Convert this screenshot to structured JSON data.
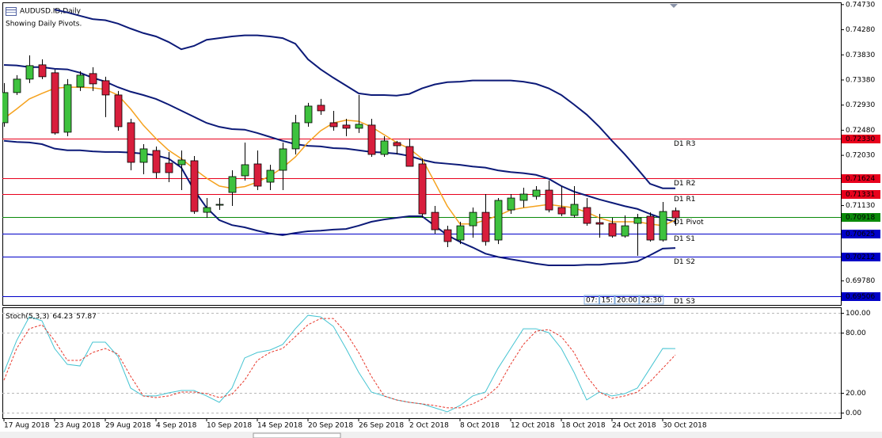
{
  "chart_data": {
    "type": "candlestick",
    "title": "AUDUSD.ID,Daily",
    "subtitle": "Showing Daily Pivots.",
    "categories": [
      "17 Aug 2018",
      null,
      null,
      null,
      "23 Aug 2018",
      null,
      null,
      null,
      "29 Aug 2018",
      null,
      null,
      null,
      "4 Sep 2018",
      null,
      null,
      null,
      "10 Sep 2018",
      null,
      null,
      null,
      "14 Sep 2018",
      null,
      null,
      null,
      "20 Sep 2018",
      null,
      null,
      null,
      "26 Sep 2018",
      null,
      null,
      null,
      "2 Oct 2018",
      null,
      null,
      null,
      "8 Oct 2018",
      null,
      null,
      null,
      "12 Oct 2018",
      null,
      null,
      null,
      "18 Oct 2018",
      null,
      null,
      null,
      "24 Oct 2018",
      null,
      null,
      null,
      "30 Oct 2018",
      null
    ],
    "open": [
      0.72614,
      0.73154,
      0.73395,
      0.73651,
      0.73509,
      0.72444,
      0.73253,
      0.73495,
      0.73367,
      0.73111,
      0.72614,
      0.71904,
      0.72117,
      0.7189,
      0.71862,
      0.71933,
      0.71009,
      0.71137,
      0.71365,
      0.71663,
      0.71876,
      0.71549,
      0.71762,
      0.72146,
      0.72614,
      0.72927,
      0.72614,
      0.72572,
      0.72515,
      0.72572,
      0.72046,
      0.72259,
      0.72188,
      0.71876,
      0.71009,
      0.70697,
      0.70513,
      0.70768,
      0.71009,
      0.70513,
      0.71052,
      0.71223,
      0.71294,
      0.71407,
      0.71095,
      0.70953,
      0.71095,
      0.70825,
      0.70811,
      0.70584,
      0.70811,
      0.70939,
      0.70513,
      0.71038
    ],
    "high": [
      0.73324,
      0.73466,
      0.73821,
      0.7375,
      0.73566,
      0.73395,
      0.73537,
      0.73608,
      0.73438,
      0.73182,
      0.72685,
      0.72231,
      0.72188,
      0.72089,
      0.72117,
      0.72018,
      0.71265,
      0.71265,
      0.71762,
      0.72259,
      0.72117,
      0.71862,
      0.72259,
      0.72756,
      0.72969,
      0.7304,
      0.72827,
      0.72685,
      0.73111,
      0.72685,
      0.72373,
      0.72288,
      0.7233,
      0.71975,
      0.71123,
      0.70768,
      0.70839,
      0.71095,
      0.71336,
      0.71265,
      0.71336,
      0.7145,
      0.71478,
      0.71578,
      0.71478,
      0.71478,
      0.71265,
      0.70981,
      0.7091,
      0.70953,
      0.70981,
      0.71009,
      0.71194,
      0.71095
    ],
    "low": [
      0.72543,
      0.73111,
      0.73324,
      0.73395,
      0.72401,
      0.72373,
      0.73182,
      0.73182,
      0.72714,
      0.72472,
      0.71762,
      0.71691,
      0.7162,
      0.71549,
      0.71407,
      0.70981,
      0.7091,
      0.71052,
      0.71123,
      0.71578,
      0.71407,
      0.71407,
      0.71407,
      0.72046,
      0.72543,
      0.72756,
      0.72472,
      0.72373,
      0.7243,
      0.72004,
      0.72004,
      0.72046,
      0.71833,
      0.7091,
      0.70626,
      0.70385,
      0.70441,
      0.70555,
      0.70413,
      0.70441,
      0.70981,
      0.71095,
      0.71237,
      0.71009,
      0.70939,
      0.7091,
      0.70768,
      0.70555,
      0.70555,
      0.70555,
      0.70229,
      0.70485,
      0.70485,
      0.70768
    ],
    "close": [
      0.73154,
      0.73395,
      0.73637,
      0.73438,
      0.7243,
      0.73296,
      0.73466,
      0.7331,
      0.73111,
      0.72543,
      0.71904,
      0.72146,
      0.7172,
      0.7172,
      0.71947,
      0.71024,
      0.71095,
      0.71152,
      0.71649,
      0.71862,
      0.71478,
      0.71762,
      0.72146,
      0.72614,
      0.72912,
      0.72827,
      0.72543,
      0.72515,
      0.72586,
      0.72046,
      0.72288,
      0.72202,
      0.71833,
      0.70981,
      0.70697,
      0.70485,
      0.70768,
      0.71009,
      0.70485,
      0.71223,
      0.71265,
      0.71336,
      0.71407,
      0.71052,
      0.70981,
      0.71152,
      0.70811,
      0.70797,
      0.70584,
      0.70768,
      0.7091,
      0.70513,
      0.71024,
      0.7091
    ],
    "up_color": "#3ec23e",
    "down_color": "#d81e3c",
    "overlays": [
      {
        "color": "#0c1a78",
        "width": 2,
        "values": [
          null,
          null,
          null,
          null,
          0.7464,
          0.7459,
          0.7453,
          0.7447,
          0.7445,
          0.7439,
          0.743,
          0.7422,
          0.7416,
          0.7406,
          0.7393,
          0.7399,
          0.741,
          0.7413,
          0.7416,
          0.7418,
          0.7418,
          0.7416,
          0.7413,
          0.7403,
          0.7375,
          0.7357,
          0.7342,
          0.7328,
          0.7314,
          0.7311,
          0.7311,
          0.731,
          0.7313,
          0.7323,
          0.733,
          0.7334,
          0.7335,
          0.7337,
          0.7337,
          0.7337,
          0.7337,
          0.7335,
          0.7331,
          0.7323,
          0.7311,
          0.7294,
          0.7276,
          0.7254,
          0.7229,
          0.7205,
          0.7179,
          0.7152,
          0.7144,
          0.7144
        ]
      },
      {
        "color": "#0c1a78",
        "width": 2,
        "values": [
          0.7365,
          0.7364,
          0.7361,
          0.7361,
          0.7358,
          0.7357,
          0.7351,
          0.7342,
          0.7335,
          0.7325,
          0.7317,
          0.7311,
          0.7304,
          0.7294,
          0.7283,
          0.7272,
          0.7261,
          0.7254,
          0.725,
          0.7249,
          0.7243,
          0.7236,
          0.7229,
          0.7223,
          0.722,
          0.7219,
          0.7216,
          0.7215,
          0.7212,
          0.7209,
          0.7208,
          0.7206,
          0.7202,
          0.7195,
          0.719,
          0.7188,
          0.7186,
          0.7183,
          0.7181,
          0.7176,
          0.7173,
          0.7171,
          0.7168,
          0.7161,
          0.7148,
          0.7138,
          0.7131,
          0.7124,
          0.7118,
          0.7112,
          0.7107,
          0.7098,
          0.709,
          0.7084
        ]
      },
      {
        "color": "#0c1a78",
        "width": 2,
        "values": [
          0.7229,
          0.7227,
          0.7226,
          0.7223,
          0.7215,
          0.7212,
          0.7212,
          0.721,
          0.7209,
          0.7209,
          0.7208,
          0.7206,
          0.7203,
          0.7197,
          0.7181,
          0.7141,
          0.7109,
          0.7087,
          0.7078,
          0.7074,
          0.7068,
          0.7063,
          0.706,
          0.7064,
          0.7067,
          0.7068,
          0.707,
          0.7071,
          0.7077,
          0.7084,
          0.7088,
          0.7091,
          0.7094,
          0.7094,
          0.7077,
          0.706,
          0.7048,
          0.7038,
          0.7027,
          0.7021,
          0.7017,
          0.7013,
          0.7009,
          0.7006,
          0.7006,
          0.7006,
          0.7007,
          0.7007,
          0.7009,
          0.701,
          0.7013,
          0.7024,
          0.7036,
          0.7037
        ]
      },
      {
        "color": "#f5a21e",
        "width": 1.5,
        "values": [
          0.7269,
          0.7286,
          0.7304,
          0.7314,
          0.7323,
          0.7325,
          0.7325,
          0.7324,
          0.7321,
          0.7311,
          0.7286,
          0.7257,
          0.7233,
          0.7212,
          0.7197,
          0.7179,
          0.7162,
          0.7148,
          0.7144,
          0.7147,
          0.7155,
          0.7166,
          0.7181,
          0.72,
          0.7226,
          0.7247,
          0.7261,
          0.7266,
          0.7264,
          0.7254,
          0.724,
          0.7226,
          0.7215,
          0.7197,
          0.7155,
          0.7112,
          0.708,
          0.708,
          0.7087,
          0.7095,
          0.7105,
          0.7109,
          0.7112,
          0.7115,
          0.7112,
          0.7109,
          0.7101,
          0.7091,
          0.7084,
          0.7084,
          0.7084,
          0.708,
          0.7077,
          0.7087
        ]
      }
    ],
    "pivots": [
      {
        "label": "D1 R3",
        "value": 0.7233,
        "value_label": "0.72330",
        "color": "#e8001c"
      },
      {
        "label": "D1 R2",
        "value": 0.71624,
        "value_label": "0.71624",
        "color": "#e8001c"
      },
      {
        "label": "D1 R1",
        "value": 0.71331,
        "value_label": "0.71331",
        "color": "#e8001c"
      },
      {
        "label": "D1 Pivot",
        "value": 0.70918,
        "value_label": "0.70918",
        "color": "#0a8a0a"
      },
      {
        "label": "D1 S1",
        "value": 0.70625,
        "value_label": "0.70625",
        "color": "#0000c8"
      },
      {
        "label": "D1 S2",
        "value": 0.70212,
        "value_label": "0.70212",
        "color": "#0000c8"
      },
      {
        "label": "D1 S3",
        "value": 0.69506,
        "value_label": "0.69506",
        "color": "#0000c8"
      }
    ],
    "time_markers": [
      "07:",
      "15:",
      "20:00",
      "22:30"
    ],
    "ylim": [
      0.6935,
      0.7477
    ],
    "yticks": [
      {
        "value": 0.7473,
        "label": "0.74730"
      },
      {
        "value": 0.7428,
        "label": "0.74280"
      },
      {
        "value": 0.7383,
        "label": "0.73830"
      },
      {
        "value": 0.7338,
        "label": "0.73380"
      },
      {
        "value": 0.7293,
        "label": "0.72930"
      },
      {
        "value": 0.7248,
        "label": "0.72480"
      },
      {
        "value": 0.7203,
        "label": "0.72030"
      },
      {
        "value": 0.7113,
        "label": "0.71130"
      },
      {
        "value": 0.6978,
        "label": "0.69780"
      }
    ],
    "stochastic": {
      "name": "Stoch(5,3,3)",
      "ylim": [
        -5.6,
        105.6
      ],
      "yticks": [
        {
          "value": 100,
          "label": "100.00"
        },
        {
          "value": 80,
          "label": "80.00"
        },
        {
          "value": 20,
          "label": "20.00"
        },
        {
          "value": 0,
          "label": "0.00"
        }
      ],
      "series": [
        {
          "color": "#45c4d2",
          "dash": false,
          "values": [
            40.5,
            72.2,
            96.0,
            92.1,
            64.3,
            48.4,
            46.8,
            70.6,
            70.6,
            56.3,
            24.6,
            16.7,
            16.7,
            19.8,
            22.2,
            22.2,
            16.7,
            10.3,
            24.6,
            54.8,
            60.3,
            62.7,
            68.3,
            84.1,
            97.6,
            96.0,
            86.5,
            64.3,
            40.5,
            20.6,
            16.7,
            12.7,
            10.3,
            8.7,
            4.8,
            0.8,
            7.1,
            16.7,
            20.6,
            44.4,
            64.3,
            84.1,
            84.1,
            80.2,
            64.3,
            40.5,
            12.7,
            20.6,
            16.7,
            19.0,
            24.6,
            44.4,
            64.3,
            64.23
          ]
        },
        {
          "color": "#e8382c",
          "dash": true,
          "values": [
            32.5,
            64.3,
            84.1,
            88.1,
            72.2,
            52.4,
            52.4,
            60.3,
            64.3,
            58.7,
            36.5,
            16.7,
            15.1,
            16.7,
            20.6,
            20.6,
            19.0,
            15.1,
            18.3,
            32.5,
            52.4,
            60.3,
            64.3,
            76.2,
            88.1,
            94.4,
            94.4,
            80.2,
            60.3,
            36.5,
            16.7,
            12.7,
            10.3,
            8.7,
            7.1,
            4.8,
            4.8,
            8.7,
            15.1,
            26.2,
            48.4,
            68.3,
            81.7,
            83.3,
            76.2,
            60.3,
            36.5,
            20.6,
            14.3,
            16.7,
            20.6,
            31.0,
            44.4,
            57.87
          ]
        }
      ]
    }
  }
}
